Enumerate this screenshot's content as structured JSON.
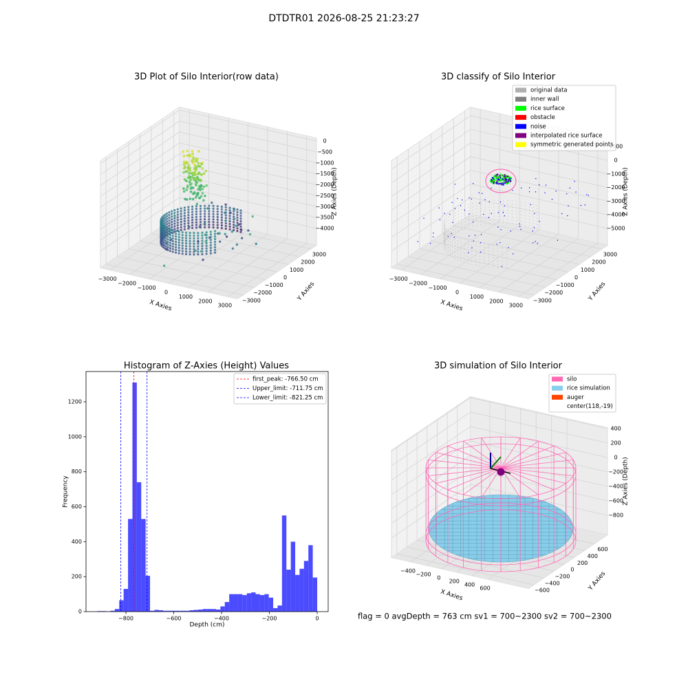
{
  "title": "DTDTR01 2026-08-25 21:23:27",
  "status_text": "flag = 0     avgDepth = 763 cm  sv1 = 700~2300  sv2 = 700~2300",
  "chart_data": [
    {
      "type": "scatter3d",
      "title": "3D Plot of Silo Interior(row data)",
      "xlabel": "X Axies",
      "ylabel": "Y Axies",
      "zlabel": "Z Axies (Depth)",
      "xlim": [
        -3500,
        3500
      ],
      "ylim": [
        -3500,
        3500
      ],
      "zlim": [
        -4771,
        140
      ],
      "xticks": [
        {
          "value": -3000,
          "label": "−3000"
        },
        {
          "value": -2000,
          "label": "−2000"
        },
        {
          "value": -1000,
          "label": "−1000"
        },
        0,
        1000,
        2000,
        3000
      ],
      "yticks": [
        {
          "value": -3000,
          "label": "−3000"
        },
        {
          "value": -2000,
          "label": "−2000"
        },
        {
          "value": -1000,
          "label": "−1000"
        },
        0,
        1000,
        2000,
        3000
      ],
      "zticks": [
        0,
        {
          "value": -500,
          "label": "−500"
        },
        {
          "value": -1000,
          "label": "−1000"
        },
        {
          "value": -1500,
          "label": "−1500"
        },
        {
          "value": -2000,
          "label": "−2000"
        },
        {
          "value": -2500,
          "label": "−2500"
        },
        {
          "value": -3000,
          "label": "−3000"
        },
        {
          "value": -3500,
          "label": "−3500"
        },
        {
          "value": -4000,
          "label": "−4000"
        }
      ]
    },
    {
      "type": "scatter3d",
      "title": "3D classify of Silo Interior",
      "xlabel": "X Axies",
      "ylabel": "Y Axies",
      "zlabel": "Z Axies (Depth)",
      "xlim": [
        -3500,
        3500
      ],
      "ylim": [
        -3500,
        3500
      ],
      "zlim": [
        -6236,
        1638
      ],
      "xticks": [
        {
          "value": -3000,
          "label": "−3000"
        },
        {
          "value": -2000,
          "label": "−2000"
        },
        {
          "value": -1000,
          "label": "−1000"
        },
        0,
        1000,
        2000,
        3000
      ],
      "yticks": [
        {
          "value": -3000,
          "label": "−3000"
        },
        {
          "value": -2000,
          "label": "−2000"
        },
        {
          "value": -1000,
          "label": "−1000"
        },
        0,
        1000,
        2000,
        3000
      ],
      "zticks": [
        1000,
        0,
        {
          "value": -1000,
          "label": "−1000"
        },
        {
          "value": -2000,
          "label": "−2000"
        },
        {
          "value": -3000,
          "label": "−3000"
        },
        {
          "value": -4000,
          "label": "−4000"
        },
        {
          "value": -5000,
          "label": "−5000"
        }
      ],
      "legend": [
        {
          "name": "original data",
          "color": "#b0b0b0"
        },
        {
          "name": "inner wall",
          "color": "#808080"
        },
        {
          "name": "rice surface",
          "color": "#00ff00"
        },
        {
          "name": "obstacle",
          "color": "#ff0000"
        },
        {
          "name": "noise",
          "color": "#0000ff"
        },
        {
          "name": "interpolated rice surface",
          "color": "#800080"
        },
        {
          "name": "symmetric generated points",
          "color": "#ffff00"
        }
      ]
    },
    {
      "type": "histogram",
      "title": "Histogram of Z-Axies (Height) Values",
      "xlabel": "Depth (cm)",
      "ylabel": "Frequency",
      "color": "#0000ff",
      "alpha": 0.7,
      "bins": [
        -920,
        -901.6,
        -883.2,
        -864.8,
        -846.4,
        -828,
        -809.6,
        -791.2,
        -772.8,
        -754.4,
        -736,
        -717.6,
        -699.2,
        -680.8,
        -662.4,
        -644,
        -625.6,
        -607.2,
        -588.8,
        -570.4,
        -552,
        -533.6,
        -515.2,
        -496.8,
        -478.4,
        -460,
        -441.6,
        -423.2,
        -404.8,
        -386.4,
        -368,
        -349.6,
        -331.2,
        -312.8,
        -294.4,
        -276,
        -257.6,
        -239.2,
        -220.8,
        -202.4,
        -184,
        -165.6,
        -147.2,
        -128.8,
        -110.4,
        -92,
        -73.6,
        -55.2,
        -36.8,
        -18.4,
        0
      ],
      "values": [
        3,
        3,
        2,
        5,
        15,
        65,
        130,
        530,
        1310,
        740,
        530,
        205,
        5,
        10,
        8,
        5,
        5,
        5,
        5,
        5,
        5,
        8,
        10,
        12,
        15,
        15,
        15,
        12,
        30,
        55,
        100,
        100,
        100,
        95,
        105,
        110,
        100,
        95,
        100,
        80,
        20,
        35,
        550,
        240,
        400,
        210,
        245,
        290,
        380,
        195
      ],
      "xlim": [
        -967,
        46
      ],
      "ylim": [
        0,
        1373
      ],
      "xticks": [
        {
          "value": -800,
          "label": "−800"
        },
        {
          "value": -600,
          "label": "−600"
        },
        {
          "value": -400,
          "label": "−400"
        },
        {
          "value": -200,
          "label": "−200"
        },
        0
      ],
      "yticks": [
        0,
        200,
        400,
        600,
        800,
        1000,
        1200
      ],
      "lines": [
        {
          "name": "first_peak: -766.50 cm",
          "value": -766.5,
          "color": "#ff0000"
        },
        {
          "name": "Upper_limit: -711.75 cm",
          "value": -711.75,
          "color": "#0000ff"
        },
        {
          "name": "Lower_limit: -821.25 cm",
          "value": -821.25,
          "color": "#0000ff"
        }
      ],
      "legend_position": "upper right"
    },
    {
      "type": "surface3d",
      "title": "3D simulation of Silo Interior",
      "xlabel": "X Axies",
      "ylabel": "Y Axies",
      "zlabel": "Z Axies (Depth)",
      "xlim": [
        -651,
        1127
      ],
      "ylim": [
        -708,
        861
      ],
      "zlim": [
        -1071,
        413
      ],
      "xticks": [
        {
          "value": -400,
          "label": "−400"
        },
        {
          "value": -200,
          "label": "−200"
        },
        0,
        200,
        400,
        600
      ],
      "yticks": [
        {
          "value": -600,
          "label": "−600"
        },
        {
          "value": -400,
          "label": "−400"
        },
        {
          "value": -200,
          "label": "−200"
        },
        0,
        200,
        400,
        600
      ],
      "zticks": [
        400,
        200,
        0,
        {
          "value": -200,
          "label": "−200"
        },
        {
          "value": -400,
          "label": "−400"
        },
        {
          "value": -600,
          "label": "−600"
        },
        {
          "value": -800,
          "label": "−800"
        }
      ],
      "legend": [
        {
          "name": "silo",
          "color": "#ff69b4"
        },
        {
          "name": "rice simulation",
          "color": "#87ceeb"
        },
        {
          "name": "auger",
          "color": "#ff4500"
        },
        {
          "name": "center(118,-19)"
        }
      ]
    }
  ]
}
